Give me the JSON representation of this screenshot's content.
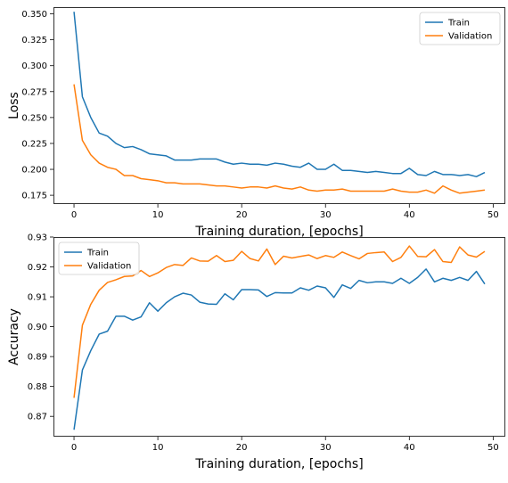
{
  "chart_data": [
    {
      "type": "line",
      "xlabel": "Training duration, [epochs]",
      "ylabel": "Loss",
      "xlim": [
        -2.45,
        51.45
      ],
      "ylim": [
        0.1665,
        0.3565
      ],
      "xticks": [
        0,
        10,
        20,
        30,
        40,
        50
      ],
      "yticks": [
        0.175,
        0.2,
        0.225,
        0.25,
        0.275,
        0.3,
        0.325,
        0.35
      ],
      "ytick_labels": [
        "0.175",
        "0.200",
        "0.225",
        "0.250",
        "0.275",
        "0.300",
        "0.325",
        "0.350"
      ],
      "legend_position": "upper right",
      "x": [
        0,
        1,
        2,
        3,
        4,
        5,
        6,
        7,
        8,
        9,
        10,
        11,
        12,
        13,
        14,
        15,
        16,
        17,
        18,
        19,
        20,
        21,
        22,
        23,
        24,
        25,
        26,
        27,
        28,
        29,
        30,
        31,
        32,
        33,
        34,
        35,
        36,
        37,
        38,
        39,
        40,
        41,
        42,
        43,
        44,
        45,
        46,
        47,
        48,
        49
      ],
      "series": [
        {
          "name": "Train",
          "color": "#1f77b4",
          "values": [
            0.352,
            0.27,
            0.25,
            0.235,
            0.232,
            0.225,
            0.221,
            0.222,
            0.219,
            0.215,
            0.214,
            0.213,
            0.209,
            0.209,
            0.209,
            0.21,
            0.21,
            0.21,
            0.207,
            0.205,
            0.206,
            0.205,
            0.205,
            0.204,
            0.206,
            0.205,
            0.203,
            0.202,
            0.206,
            0.2,
            0.2,
            0.205,
            0.199,
            0.199,
            0.198,
            0.197,
            0.198,
            0.197,
            0.196,
            0.196,
            0.201,
            0.195,
            0.194,
            0.198,
            0.195,
            0.195,
            0.194,
            0.195,
            0.193,
            0.197
          ]
        },
        {
          "name": "Validation",
          "color": "#ff7f0e",
          "values": [
            0.282,
            0.228,
            0.214,
            0.206,
            0.202,
            0.2,
            0.194,
            0.194,
            0.191,
            0.19,
            0.189,
            0.187,
            0.187,
            0.186,
            0.186,
            0.186,
            0.185,
            0.184,
            0.184,
            0.183,
            0.182,
            0.183,
            0.183,
            0.182,
            0.184,
            0.182,
            0.181,
            0.183,
            0.18,
            0.179,
            0.18,
            0.18,
            0.181,
            0.179,
            0.179,
            0.179,
            0.179,
            0.179,
            0.181,
            0.179,
            0.178,
            0.178,
            0.18,
            0.177,
            0.184,
            0.18,
            0.177,
            0.178,
            0.179,
            0.18
          ]
        }
      ]
    },
    {
      "type": "line",
      "xlabel": "Training duration, [epochs]",
      "ylabel": "Accuracy",
      "xlim": [
        -2.45,
        51.45
      ],
      "ylim": [
        0.8632,
        0.93
      ],
      "xticks": [
        0,
        10,
        20,
        30,
        40,
        50
      ],
      "yticks": [
        0.87,
        0.88,
        0.89,
        0.9,
        0.91,
        0.92,
        0.93
      ],
      "ytick_labels": [
        "0.87",
        "0.88",
        "0.89",
        "0.90",
        "0.91",
        "0.92",
        "0.93"
      ],
      "legend_position": "upper left",
      "x": [
        0,
        1,
        2,
        3,
        4,
        5,
        6,
        7,
        8,
        9,
        10,
        11,
        12,
        13,
        14,
        15,
        16,
        17,
        18,
        19,
        20,
        21,
        22,
        23,
        24,
        25,
        26,
        27,
        28,
        29,
        30,
        31,
        32,
        33,
        34,
        35,
        36,
        37,
        38,
        39,
        40,
        41,
        42,
        43,
        44,
        45,
        46,
        47,
        48,
        49
      ],
      "series": [
        {
          "name": "Train",
          "color": "#1f77b4",
          "values": [
            0.8655,
            0.8855,
            0.892,
            0.8975,
            0.8985,
            0.9035,
            0.9035,
            0.9022,
            0.9033,
            0.908,
            0.9052,
            0.908,
            0.91,
            0.9112,
            0.9106,
            0.9082,
            0.9076,
            0.9075,
            0.911,
            0.909,
            0.9124,
            0.9124,
            0.9123,
            0.9101,
            0.9114,
            0.9113,
            0.9113,
            0.913,
            0.9122,
            0.9136,
            0.913,
            0.9098,
            0.914,
            0.9128,
            0.9155,
            0.9147,
            0.915,
            0.915,
            0.9145,
            0.9162,
            0.9145,
            0.9165,
            0.9193,
            0.915,
            0.9162,
            0.9155,
            0.9165,
            0.9155,
            0.9185,
            0.9143
          ]
        },
        {
          "name": "Validation",
          "color": "#ff7f0e",
          "values": [
            0.8762,
            0.9005,
            0.9075,
            0.9122,
            0.9148,
            0.9157,
            0.9168,
            0.917,
            0.9188,
            0.9168,
            0.918,
            0.9198,
            0.9208,
            0.9205,
            0.923,
            0.922,
            0.9219,
            0.9238,
            0.9218,
            0.9222,
            0.9252,
            0.9228,
            0.922,
            0.926,
            0.9208,
            0.9236,
            0.923,
            0.9235,
            0.924,
            0.9228,
            0.9238,
            0.9232,
            0.925,
            0.9238,
            0.9227,
            0.9245,
            0.9248,
            0.925,
            0.9218,
            0.9232,
            0.927,
            0.9235,
            0.9234,
            0.9258,
            0.9218,
            0.9215,
            0.9267,
            0.924,
            0.9233,
            0.9252
          ]
        }
      ]
    }
  ]
}
